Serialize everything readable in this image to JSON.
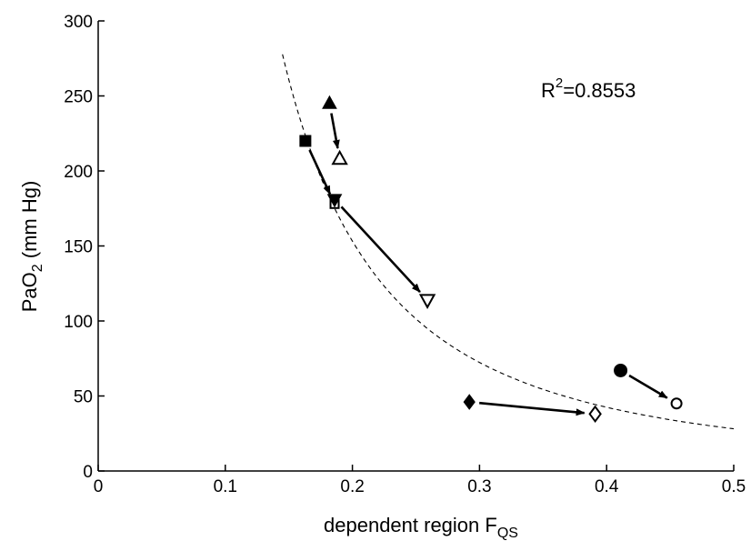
{
  "chart_data": {
    "type": "scatter",
    "title": "",
    "xlabel": {
      "main": "dependent region F",
      "sub": "QS"
    },
    "ylabel": {
      "main": "PaO",
      "sub": "2",
      "rest": " (mm Hg)"
    },
    "xlim": [
      0,
      0.5
    ],
    "ylim": [
      0,
      300
    ],
    "xticks": [
      0,
      0.1,
      0.2,
      0.3,
      0.4,
      0.5
    ],
    "xtick_labels": [
      "0",
      "0.1",
      "0.2",
      "0.3",
      "0.4",
      "0.5"
    ],
    "yticks": [
      0,
      50,
      100,
      150,
      200,
      250,
      300
    ],
    "ytick_labels": [
      "0",
      "50",
      "100",
      "150",
      "200",
      "250",
      "300"
    ],
    "grid": false,
    "legend": "none",
    "annotation": {
      "base": "R",
      "sup": "2",
      "rest": "=0.8553"
    },
    "fit_curve": {
      "style": "dashed",
      "color": "#000000",
      "x_start": 0.145,
      "x_end": 0.5,
      "coef": 7.8,
      "exponent": -1.85
    },
    "pairs": [
      {
        "marker": "triangle-up",
        "from": [
          0.182,
          245
        ],
        "to": [
          0.19,
          208
        ]
      },
      {
        "marker": "square",
        "from": [
          0.163,
          220
        ],
        "to": [
          0.186,
          178
        ]
      },
      {
        "marker": "triangle-down",
        "from": [
          0.186,
          181
        ],
        "to": [
          0.259,
          114
        ]
      },
      {
        "marker": "diamond",
        "from": [
          0.292,
          46
        ],
        "to": [
          0.391,
          38
        ]
      },
      {
        "marker": "circle",
        "from": [
          0.411,
          67
        ],
        "to": [
          0.455,
          45
        ]
      }
    ]
  }
}
